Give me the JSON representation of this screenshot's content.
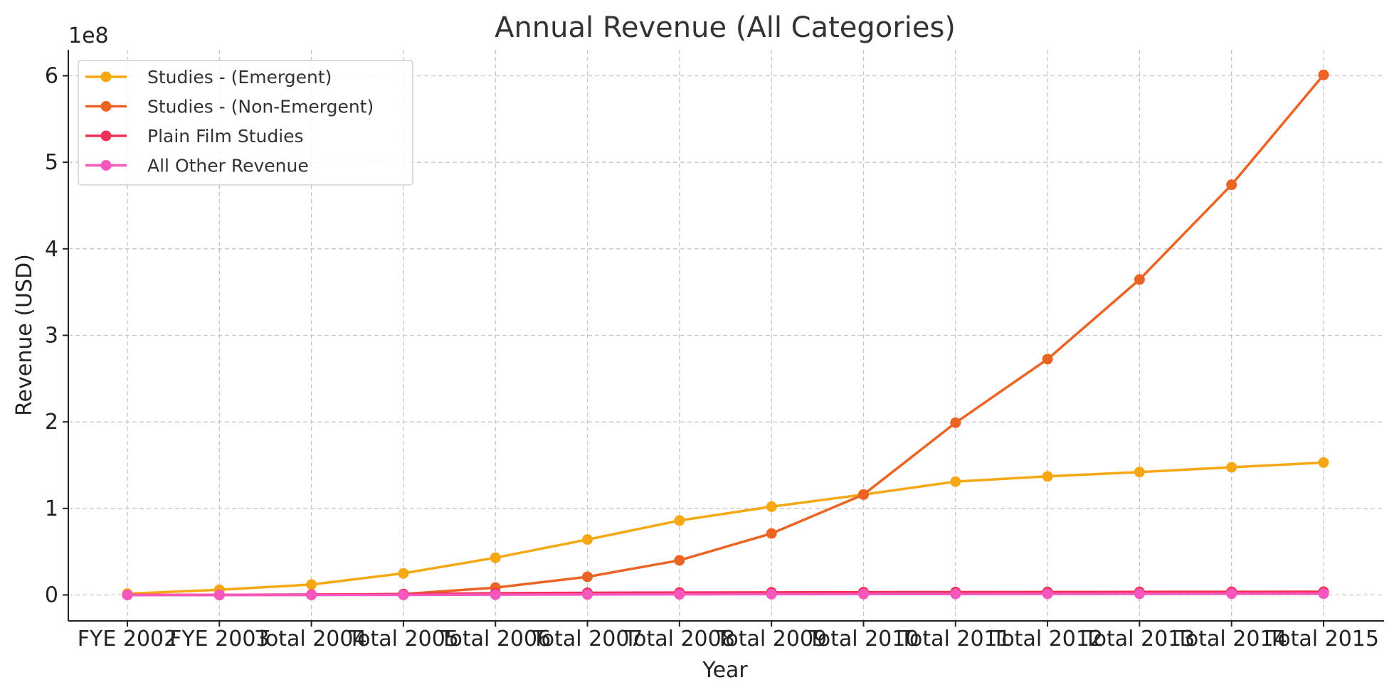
{
  "chart_data": {
    "type": "line",
    "title": "Annual Revenue (All Categories)",
    "xlabel": "Year",
    "ylabel": "Revenue (USD)",
    "y_multiplier_label": "1e8",
    "ylim": [
      -30000000,
      630000000
    ],
    "yticks": [
      0,
      100000000,
      200000000,
      300000000,
      400000000,
      500000000,
      600000000
    ],
    "ytick_labels": [
      "0",
      "1",
      "2",
      "3",
      "4",
      "5",
      "6"
    ],
    "grid": true,
    "legend_position": "top-left",
    "categories": [
      "FYE 2002",
      "FYE 2003",
      "Total 2004",
      "Total 2005",
      "Total 2006",
      "Total 2007",
      "Total 2008",
      "Total 2009",
      "Total 2010",
      "Total 2011",
      "Total 2012",
      "Total 2013",
      "Total 2014",
      "Total 2015"
    ],
    "series": [
      {
        "name": "Studies - (Emergent)",
        "color": "#f5a814",
        "values": [
          1500000,
          6000000,
          12000000,
          25000000,
          43000000,
          64000000,
          86000000,
          102000000,
          116000000,
          131000000,
          137000000,
          142000000,
          147500000,
          153000000
        ]
      },
      {
        "name": "Studies - (Non-Emergent)",
        "color": "#eb6424",
        "values": [
          0,
          0,
          0,
          1000000,
          8500000,
          21000000,
          40000000,
          71000000,
          116000000,
          199000000,
          272500000,
          364500000,
          474000000,
          601000000
        ]
      },
      {
        "name": "Plain Film Studies",
        "color": "#ef3155",
        "values": [
          0,
          0,
          500000,
          1000000,
          2000000,
          2500000,
          2800000,
          3000000,
          3200000,
          3300000,
          3400000,
          3500000,
          3600000,
          3700000
        ]
      },
      {
        "name": "All Other Revenue",
        "color": "#f557be",
        "values": [
          0,
          0,
          0,
          0,
          300000,
          500000,
          700000,
          900000,
          1000000,
          1100000,
          1200000,
          1300000,
          1400000,
          1500000
        ]
      }
    ]
  }
}
